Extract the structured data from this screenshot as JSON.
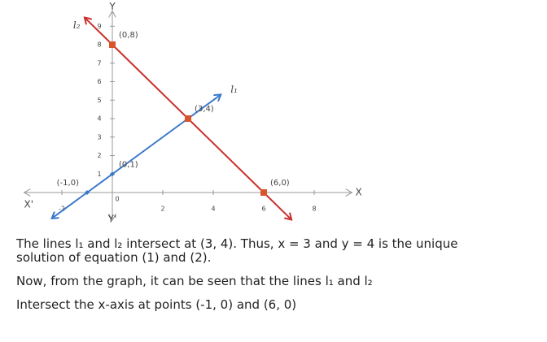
{
  "chart_data": {
    "type": "line",
    "xlim": [
      -3.5,
      9.5
    ],
    "ylim": [
      -1.5,
      10
    ],
    "xticks": [
      -2,
      0,
      2,
      4,
      6,
      8
    ],
    "yticks": [
      1,
      2,
      3,
      4,
      5,
      6,
      7,
      8,
      9
    ],
    "axis_labels": {
      "x": "X",
      "x_neg": "X'",
      "y": "Y",
      "y_neg": "Y'"
    },
    "grid": false,
    "series": [
      {
        "name": "l₁",
        "color": "#3a78c9",
        "x": [
          -2.4,
          -1,
          0,
          3,
          4.3
        ],
        "values": [
          -1.4,
          0,
          1,
          4,
          5.3
        ]
      },
      {
        "name": "l₂",
        "color": "#c9302c",
        "x": [
          -1.1,
          0,
          3,
          6,
          7.1
        ],
        "values": [
          9.47,
          8,
          4,
          0,
          -1.47
        ]
      }
    ],
    "points": [
      {
        "label": "(0,8)",
        "x": 0,
        "y": 8,
        "marker": "square",
        "color": "#d9542b",
        "side": "right"
      },
      {
        "label": "(3,4)",
        "x": 3,
        "y": 4,
        "marker": "square",
        "color": "#d9542b",
        "side": "right"
      },
      {
        "label": "(6,0)",
        "x": 6,
        "y": 0,
        "marker": "square",
        "color": "#d9542b",
        "side": "right"
      },
      {
        "label": "(-1,0)",
        "x": -1,
        "y": 0,
        "marker": "diamond",
        "color": "#3a78c9",
        "side": "left"
      },
      {
        "label": "(0,1)",
        "x": 0,
        "y": 1,
        "marker": "diamond",
        "color": "#3a78c9",
        "side": "right"
      }
    ]
  },
  "text": [
    "The lines l₁ and l₂ intersect at (3, 4). Thus, x = 3 and y = 4 is the unique solution of equation (1) and (2).",
    "Now, from the graph, it can be seen that the lines l₁ and l₂",
    "Intersect the x-axis at points (-1, 0) and (6, 0)"
  ]
}
